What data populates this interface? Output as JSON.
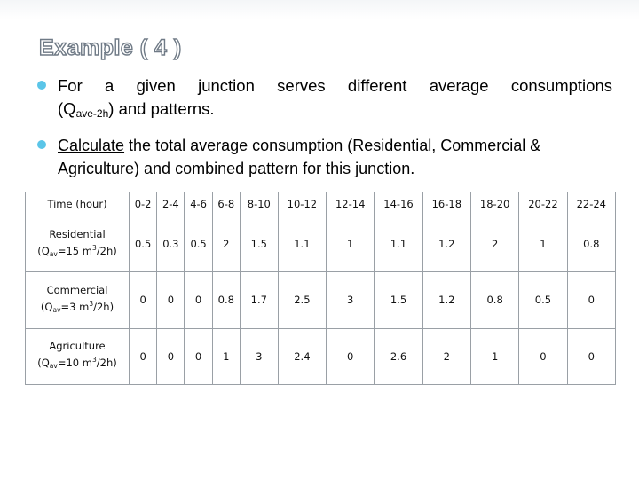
{
  "title": "Example ( 4 )",
  "bullets": {
    "b1_line1": "For a given junction serves different average consumptions",
    "b1_q_open": "(Q",
    "b1_q_sub": "ave-2h",
    "b1_rest": ") and patterns.",
    "b2_underlined": "Calculate",
    "b2_rest": " the total average consumption (Residential, Commercial & Agriculture) and combined pattern for this junction."
  },
  "table": {
    "header_label": "Time (hour)",
    "time_columns": [
      "0-2",
      "2-4",
      "4-6",
      "6-8",
      "8-10",
      "10-12",
      "12-14",
      "14-16",
      "16-18",
      "18-20",
      "20-22",
      "22-24"
    ],
    "rows": [
      {
        "name": "Residential",
        "q_pre": "(Q",
        "q_sub": "av",
        "q_mid": "=15 m",
        "q_sup": "3",
        "q_post": "/2h)",
        "values": [
          "0.5",
          "0.3",
          "0.5",
          "2",
          "1.5",
          "1.1",
          "1",
          "1.1",
          "1.2",
          "2",
          "1",
          "0.8"
        ]
      },
      {
        "name": "Commercial",
        "q_pre": "(Q",
        "q_sub": "av",
        "q_mid": "=3 m",
        "q_sup": "3",
        "q_post": "/2h)",
        "values": [
          "0",
          "0",
          "0",
          "0.8",
          "1.7",
          "2.5",
          "3",
          "1.5",
          "1.2",
          "0.8",
          "0.5",
          "0"
        ]
      },
      {
        "name": "Agriculture",
        "q_pre": "(Q",
        "q_sub": "av",
        "q_mid": "=10 m",
        "q_sup": "3",
        "q_post": "/2h)",
        "values": [
          "0",
          "0",
          "0",
          "1",
          "3",
          "2.4",
          "0",
          "2.6",
          "2",
          "1",
          "0",
          "0"
        ]
      }
    ]
  },
  "colors": {
    "bullet": "#5bc5e8",
    "title_outline": "#6f7a86"
  }
}
